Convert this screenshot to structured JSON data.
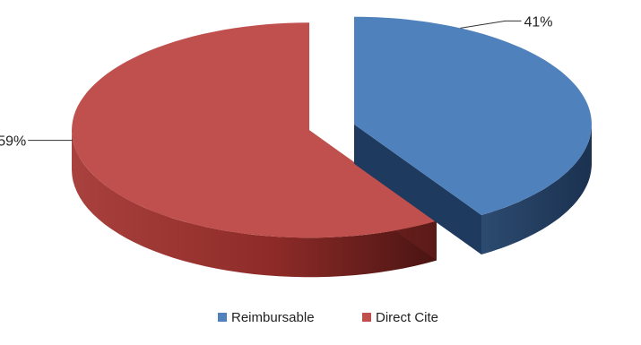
{
  "chart_data": {
    "type": "pie",
    "style": "3d-exploded",
    "title": "",
    "categories": [
      "Reimbursable",
      "Direct Cite"
    ],
    "values": [
      41,
      59
    ],
    "data_labels": [
      "41%",
      "59%"
    ],
    "legend": {
      "position": "bottom",
      "items": [
        {
          "label": "Reimbursable",
          "color": "#4F81BD"
        },
        {
          "label": "Direct Cite",
          "color": "#C0504D"
        }
      ]
    },
    "colors": {
      "Reimbursable": {
        "top": "#4F81BD",
        "side": "#1F3A5F",
        "side_light": "#2C4B70"
      },
      "Direct Cite": {
        "top": "#C0504D",
        "side": "#8E2B28",
        "side_dark": "#4A1412"
      }
    }
  }
}
